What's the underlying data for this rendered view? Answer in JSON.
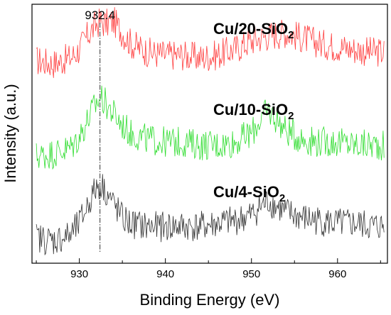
{
  "chart_data": {
    "type": "line",
    "xlabel": "Binding Energy (eV)",
    "ylabel": "Intensity (a.u.)",
    "xlim": [
      924.5,
      965.8
    ],
    "x_ticks": [
      930,
      940,
      950,
      960
    ],
    "y_ticks_shown": false,
    "grid": false,
    "legend": "none",
    "annotations": [
      {
        "text": "932.4",
        "x": 932.4,
        "type": "vertical-dash-dot-line"
      }
    ],
    "series": [
      {
        "label_main": "Cu/20-SiO",
        "label_sub": "2",
        "color": "#ff4040",
        "x": [
          925,
          927,
          929,
          930,
          931,
          932,
          932.5,
          933,
          934,
          935,
          936,
          938,
          940,
          942,
          944,
          946,
          948,
          950,
          952,
          954,
          956,
          958,
          960,
          962,
          964,
          965.5
        ],
        "y": [
          0.6,
          0.5,
          0.7,
          1.0,
          1.5,
          1.9,
          2.0,
          1.9,
          2.0,
          1.6,
          1.2,
          0.9,
          0.8,
          0.8,
          0.7,
          0.8,
          1.0,
          1.3,
          1.5,
          1.6,
          1.4,
          1.2,
          1.1,
          1.0,
          0.9,
          0.9
        ],
        "offset": 6.0
      },
      {
        "label_main": "Cu/10-SiO",
        "label_sub": "2",
        "color": "#30dd30",
        "x": [
          925,
          927,
          929,
          930,
          931,
          932,
          932.5,
          933,
          934,
          935,
          936,
          938,
          940,
          942,
          944,
          946,
          948,
          950,
          951,
          952,
          953,
          954,
          956,
          958,
          960,
          962,
          964,
          965.5
        ],
        "y": [
          0.2,
          0.3,
          0.5,
          0.9,
          1.5,
          2.1,
          2.3,
          2.1,
          1.7,
          1.3,
          1.0,
          0.8,
          0.7,
          0.7,
          0.6,
          0.6,
          0.7,
          1.0,
          1.5,
          1.8,
          1.5,
          1.1,
          0.8,
          0.7,
          0.7,
          0.6,
          0.6,
          0.6
        ],
        "offset": 3.0
      },
      {
        "label_main": "Cu/4-SiO",
        "label_sub": "2",
        "color": "#333333",
        "x": [
          925,
          927,
          929,
          930,
          931,
          932,
          932.5,
          933,
          934,
          935,
          936,
          938,
          940,
          942,
          944,
          946,
          948,
          950,
          951,
          952,
          953,
          954,
          956,
          958,
          960,
          962,
          964,
          965.5
        ],
        "y": [
          0.3,
          0.2,
          0.4,
          0.8,
          1.5,
          2.1,
          2.2,
          2.0,
          1.5,
          1.0,
          0.8,
          0.7,
          0.7,
          0.7,
          0.7,
          0.8,
          0.9,
          1.1,
          1.4,
          1.6,
          1.4,
          1.2,
          1.0,
          0.9,
          0.8,
          0.8,
          0.7,
          0.7
        ],
        "offset": 0.0
      }
    ]
  }
}
